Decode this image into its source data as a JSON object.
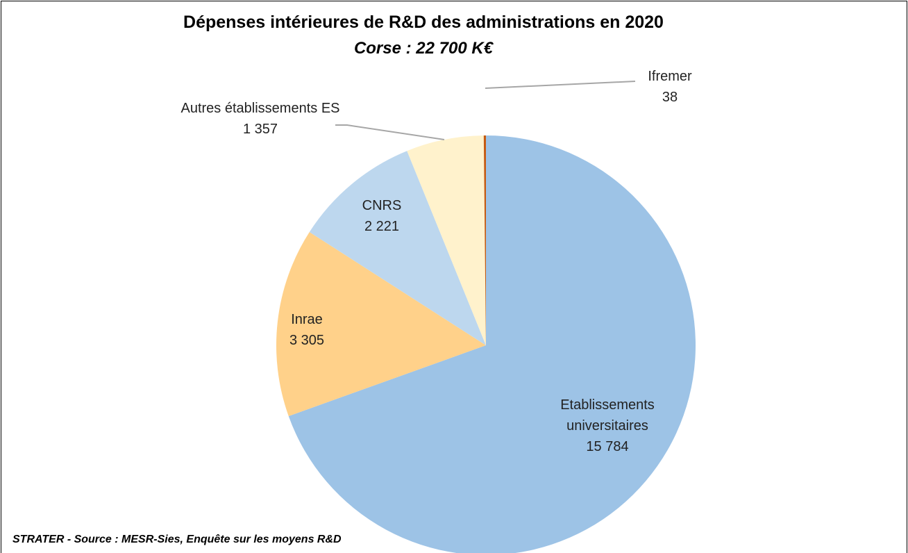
{
  "chart_data": {
    "type": "pie",
    "title": "Dépenses intérieures de R&D des administrations en 2020",
    "subtitle": "Corse : 22 700 K€",
    "source": "STRATER - Source : MESR-Sies, Enquête sur les moyens R&D",
    "categories": [
      "Etablissements universitaires",
      "Inrae",
      "CNRS",
      "Autres établissements ES",
      "Ifremer"
    ],
    "values": [
      15784,
      3305,
      2221,
      1357,
      38
    ],
    "value_labels": [
      "15 784",
      "3 305",
      "2 221",
      "1 357",
      "38"
    ],
    "colors": [
      "#9dc3e6",
      "#ffd18a",
      "#bdd7ee",
      "#fff2cc",
      "#c55a11"
    ]
  }
}
